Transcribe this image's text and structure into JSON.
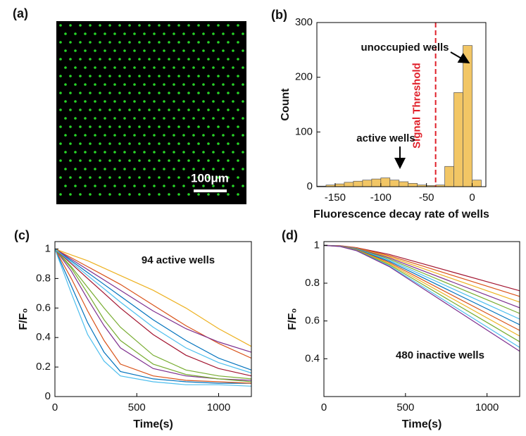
{
  "image_panel": {
    "panel_label": "(a)",
    "scale_bar": "100μm"
  },
  "chart_data": [
    {
      "type": "histogram",
      "panel_label": "(b)",
      "xlabel": "Fluorescence decay rate of wells",
      "ylabel": "Count",
      "bins": [
        -170,
        -160,
        -150,
        -140,
        -130,
        -120,
        -110,
        -100,
        -90,
        -80,
        -70,
        -60,
        -50,
        -40,
        -30,
        -20,
        -10,
        0,
        10
      ],
      "values": [
        1,
        3,
        5,
        8,
        10,
        12,
        14,
        16,
        12,
        9,
        6,
        3,
        2,
        3,
        37,
        172,
        258,
        12
      ],
      "color": "#f2c665",
      "xlim": [
        -170,
        15
      ],
      "ylim": [
        0,
        300
      ],
      "xticks": [
        -150,
        -100,
        -50,
        0
      ],
      "yticks": [
        0,
        100,
        200,
        300
      ],
      "threshold": -40,
      "threshold_label": "Signal Threshold",
      "threshold_color": "#e0202a",
      "annotations": [
        "unoccupied wells",
        "active wells"
      ]
    },
    {
      "type": "line",
      "panel_label": "(c)",
      "xlabel": "Time(s)",
      "ylabel": "F/F₀",
      "annotations": [
        "94 active wells"
      ],
      "x": [
        0,
        100,
        200,
        300,
        400,
        600,
        800,
        1000,
        1200
      ],
      "xlim": [
        0,
        1200
      ],
      "ylim": [
        0,
        1.05
      ],
      "xticks": [
        0,
        500,
        1000
      ],
      "yticks": [
        0,
        0.2,
        0.4,
        0.6,
        0.8,
        1
      ],
      "series": [
        {
          "color": "#0072BD",
          "values": [
            1,
            0.75,
            0.5,
            0.3,
            0.17,
            0.12,
            0.1,
            0.09,
            0.09
          ]
        },
        {
          "color": "#D95319",
          "values": [
            1,
            0.8,
            0.58,
            0.38,
            0.22,
            0.14,
            0.11,
            0.1,
            0.09
          ]
        },
        {
          "color": "#EDB120",
          "values": [
            1,
            0.96,
            0.92,
            0.87,
            0.82,
            0.72,
            0.6,
            0.46,
            0.34
          ]
        },
        {
          "color": "#7E2F8E",
          "values": [
            1,
            0.85,
            0.66,
            0.48,
            0.33,
            0.19,
            0.14,
            0.12,
            0.11
          ]
        },
        {
          "color": "#77AC30",
          "values": [
            1,
            0.88,
            0.74,
            0.6,
            0.47,
            0.28,
            0.18,
            0.14,
            0.12
          ]
        },
        {
          "color": "#4DBEEE",
          "values": [
            1,
            0.7,
            0.42,
            0.24,
            0.14,
            0.1,
            0.08,
            0.08,
            0.07
          ]
        },
        {
          "color": "#A2142F",
          "values": [
            1,
            0.9,
            0.8,
            0.7,
            0.6,
            0.42,
            0.28,
            0.19,
            0.14
          ]
        },
        {
          "color": "#0072BD",
          "values": [
            1,
            0.92,
            0.84,
            0.76,
            0.68,
            0.52,
            0.38,
            0.26,
            0.18
          ]
        },
        {
          "color": "#D95319",
          "values": [
            1,
            0.94,
            0.88,
            0.82,
            0.76,
            0.62,
            0.48,
            0.36,
            0.26
          ]
        },
        {
          "color": "#7E2F8E",
          "values": [
            1,
            0.93,
            0.86,
            0.79,
            0.72,
            0.58,
            0.46,
            0.37,
            0.3
          ]
        },
        {
          "color": "#77AC30",
          "values": [
            1,
            0.87,
            0.7,
            0.52,
            0.38,
            0.22,
            0.15,
            0.12,
            0.1
          ]
        },
        {
          "color": "#4DBEEE",
          "values": [
            1,
            0.91,
            0.82,
            0.73,
            0.64,
            0.47,
            0.33,
            0.23,
            0.16
          ]
        }
      ]
    },
    {
      "type": "line",
      "panel_label": "(d)",
      "xlabel": "Time(s)",
      "ylabel": "F/F₀",
      "annotations": [
        "480 inactive wells"
      ],
      "x": [
        0,
        100,
        200,
        400,
        600,
        800,
        1000,
        1200
      ],
      "xlim": [
        0,
        1200
      ],
      "ylim": [
        0.2,
        1.02
      ],
      "xticks": [
        0,
        500,
        1000
      ],
      "yticks": [
        0.4,
        0.6,
        0.8,
        1
      ],
      "series": [
        {
          "color": "#A2142F",
          "values": [
            1,
            0.998,
            0.988,
            0.952,
            0.904,
            0.856,
            0.808,
            0.76
          ]
        },
        {
          "color": "#D95319",
          "values": [
            1,
            0.997,
            0.987,
            0.946,
            0.892,
            0.838,
            0.784,
            0.73
          ]
        },
        {
          "color": "#EDB120",
          "values": [
            1,
            0.997,
            0.985,
            0.94,
            0.88,
            0.82,
            0.76,
            0.7
          ]
        },
        {
          "color": "#7E2F8E",
          "values": [
            1,
            0.997,
            0.984,
            0.934,
            0.868,
            0.802,
            0.736,
            0.67
          ]
        },
        {
          "color": "#77AC30",
          "values": [
            1,
            0.996,
            0.982,
            0.928,
            0.856,
            0.784,
            0.712,
            0.64
          ]
        },
        {
          "color": "#4DBEEE",
          "values": [
            1,
            0.996,
            0.981,
            0.922,
            0.844,
            0.766,
            0.688,
            0.61
          ]
        },
        {
          "color": "#0072BD",
          "values": [
            1,
            0.996,
            0.979,
            0.916,
            0.832,
            0.748,
            0.664,
            0.58
          ]
        },
        {
          "color": "#D95319",
          "values": [
            1,
            0.996,
            0.978,
            0.91,
            0.82,
            0.73,
            0.64,
            0.55
          ]
        },
        {
          "color": "#EDB120",
          "values": [
            1,
            0.995,
            0.976,
            0.904,
            0.808,
            0.712,
            0.616,
            0.52
          ]
        },
        {
          "color": "#77AC30",
          "values": [
            1,
            0.995,
            0.975,
            0.898,
            0.796,
            0.694,
            0.592,
            0.49
          ]
        },
        {
          "color": "#4DBEEE",
          "values": [
            1,
            0.995,
            0.973,
            0.892,
            0.784,
            0.676,
            0.568,
            0.46
          ]
        },
        {
          "color": "#7E2F8E",
          "values": [
            1,
            0.994,
            0.972,
            0.888,
            0.776,
            0.664,
            0.552,
            0.44
          ]
        }
      ]
    }
  ]
}
